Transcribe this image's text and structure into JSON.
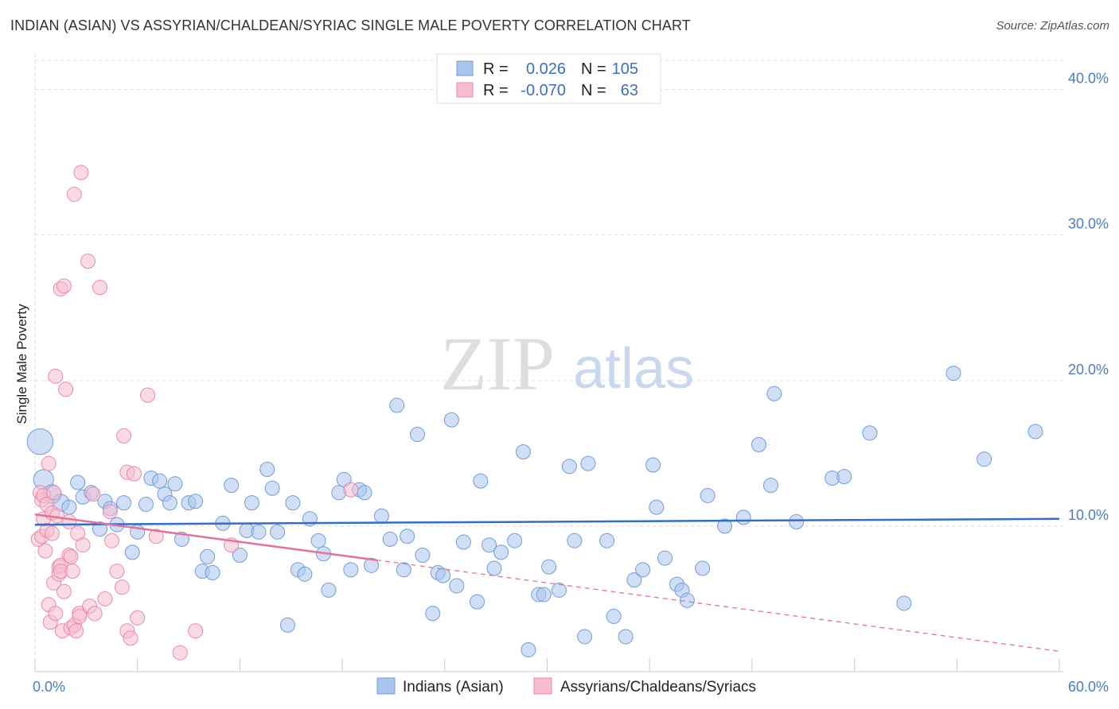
{
  "title": "INDIAN (ASIAN) VS ASSYRIAN/CHALDEAN/SYRIAC SINGLE MALE POVERTY CORRELATION CHART",
  "source": "Source: ZipAtlas.com",
  "watermark": {
    "zip": "ZIP",
    "atlas": "atlas"
  },
  "colors": {
    "blue_fill": "#a9c5ee",
    "blue_stroke": "#6f9ddb",
    "blue_line": "#2f6fc9",
    "pink_fill": "#f6bed0",
    "pink_stroke": "#e88aaa",
    "pink_line": "#e4709a",
    "grid": "#dddddd",
    "tick_text": "#4a7cc7"
  },
  "legend": {
    "r_label": "R =",
    "n_label": "N =",
    "series1": {
      "r": "0.026",
      "n": "105"
    },
    "series2": {
      "r": "-0.070",
      "n": "63"
    }
  },
  "chart_data": {
    "type": "scatter",
    "ylabel": "Single Male Poverty",
    "xlabel": "",
    "xlim": [
      0,
      60
    ],
    "ylim": [
      0,
      42
    ],
    "x_ticks": [
      0,
      6,
      12,
      18,
      24,
      30,
      36,
      42,
      48,
      54,
      60
    ],
    "x_tick_labels": [
      {
        "value": 0,
        "label": "0.0%"
      },
      {
        "value": 60,
        "label": "60.0%"
      }
    ],
    "y_tick_labels": [
      {
        "value": 10,
        "label": "10.0%"
      },
      {
        "value": 20,
        "label": "20.0%"
      },
      {
        "value": 30,
        "label": "30.0%"
      },
      {
        "value": 40,
        "label": "40.0%"
      }
    ],
    "legend_position": "bottom",
    "series": [
      {
        "name": "Indians (Asian)",
        "trend": {
          "x": [
            0,
            60
          ],
          "y": [
            10.1,
            10.5
          ],
          "dashed_from": null
        },
        "points": [
          [
            0.3,
            15.8,
            18
          ],
          [
            0.5,
            13.2,
            14
          ],
          [
            1,
            12.2,
            13
          ],
          [
            1.5,
            11.6,
            12
          ],
          [
            2,
            11.3,
            10
          ],
          [
            2.5,
            13,
            10
          ],
          [
            2.8,
            12,
            10
          ],
          [
            3.3,
            12.3,
            10
          ],
          [
            3.8,
            9.8,
            10
          ],
          [
            4.1,
            11.7,
            10
          ],
          [
            4.4,
            11.2,
            10
          ],
          [
            4.8,
            10.1,
            10
          ],
          [
            5.2,
            11.6,
            10
          ],
          [
            5.7,
            8.2,
            10
          ],
          [
            6,
            9.6,
            10
          ],
          [
            6.5,
            11.5,
            10
          ],
          [
            6.8,
            13.3,
            10
          ],
          [
            7.3,
            13.1,
            10
          ],
          [
            7.6,
            12.2,
            10
          ],
          [
            7.9,
            11.6,
            10
          ],
          [
            8.2,
            12.9,
            10
          ],
          [
            8.6,
            9.1,
            10
          ],
          [
            9,
            11.6,
            10
          ],
          [
            9.4,
            11.7,
            10
          ],
          [
            9.8,
            6.9,
            10
          ],
          [
            10.1,
            7.9,
            10
          ],
          [
            10.4,
            6.8,
            10
          ],
          [
            11,
            10.2,
            10
          ],
          [
            11.5,
            12.8,
            10
          ],
          [
            12,
            8,
            10
          ],
          [
            12.4,
            9.7,
            10
          ],
          [
            12.7,
            11.6,
            10
          ],
          [
            13.1,
            9.6,
            10
          ],
          [
            13.6,
            13.9,
            10
          ],
          [
            13.9,
            12.6,
            10
          ],
          [
            14.2,
            9.6,
            10
          ],
          [
            14.8,
            3.2,
            10
          ],
          [
            15.1,
            11.6,
            10
          ],
          [
            15.4,
            7,
            10
          ],
          [
            15.8,
            6.7,
            10
          ],
          [
            16.1,
            10.5,
            10
          ],
          [
            16.6,
            9,
            10
          ],
          [
            16.9,
            8.1,
            10
          ],
          [
            17.2,
            5.6,
            10
          ],
          [
            17.8,
            12.3,
            10
          ],
          [
            18.1,
            13.2,
            10
          ],
          [
            18.5,
            7,
            10
          ],
          [
            19,
            12.5,
            10
          ],
          [
            19.3,
            12.3,
            10
          ],
          [
            19.7,
            7.3,
            10
          ],
          [
            20.3,
            10.7,
            10
          ],
          [
            20.8,
            9.1,
            10
          ],
          [
            21.2,
            18.3,
            10
          ],
          [
            21.6,
            7,
            10
          ],
          [
            21.8,
            9.3,
            10
          ],
          [
            22.4,
            16.3,
            10
          ],
          [
            22.7,
            8,
            10
          ],
          [
            23.3,
            4,
            10
          ],
          [
            23.6,
            6.8,
            10
          ],
          [
            23.9,
            6.6,
            10
          ],
          [
            24.4,
            17.3,
            10
          ],
          [
            24.7,
            5.9,
            10
          ],
          [
            25.1,
            8.9,
            10
          ],
          [
            25.9,
            4.8,
            10
          ],
          [
            26.1,
            13.1,
            10
          ],
          [
            26.6,
            8.7,
            10
          ],
          [
            26.9,
            7.1,
            10
          ],
          [
            27.3,
            8.2,
            10
          ],
          [
            28.1,
            9,
            10
          ],
          [
            28.6,
            15.1,
            10
          ],
          [
            28.9,
            1.5,
            10
          ],
          [
            29.5,
            5.3,
            10
          ],
          [
            29.8,
            5.3,
            10
          ],
          [
            30.1,
            7.2,
            10
          ],
          [
            30.7,
            5.6,
            10
          ],
          [
            31.3,
            14.1,
            10
          ],
          [
            31.6,
            9,
            10
          ],
          [
            32.2,
            2.4,
            10
          ],
          [
            32.4,
            14.3,
            10
          ],
          [
            33.5,
            9,
            10
          ],
          [
            33.9,
            3.8,
            10
          ],
          [
            34.6,
            2.4,
            10
          ],
          [
            35.1,
            6.3,
            10
          ],
          [
            35.6,
            7,
            10
          ],
          [
            36.2,
            14.2,
            10
          ],
          [
            36.4,
            11.3,
            10
          ],
          [
            36.9,
            7.8,
            10
          ],
          [
            37.6,
            6,
            10
          ],
          [
            37.9,
            5.6,
            10
          ],
          [
            38.2,
            4.9,
            10
          ],
          [
            39.1,
            7.1,
            10
          ],
          [
            39.4,
            12.1,
            10
          ],
          [
            40.4,
            10,
            10
          ],
          [
            41.5,
            10.6,
            10
          ],
          [
            42.4,
            15.6,
            10
          ],
          [
            43.3,
            19.1,
            10
          ],
          [
            43.1,
            12.8,
            10
          ],
          [
            44.6,
            10.3,
            10
          ],
          [
            46.7,
            13.3,
            10
          ],
          [
            47.4,
            13.4,
            10
          ],
          [
            48.9,
            16.4,
            10
          ],
          [
            50.9,
            4.7,
            10
          ],
          [
            53.8,
            20.5,
            10
          ],
          [
            55.6,
            14.6,
            10
          ],
          [
            58.6,
            16.5,
            10
          ]
        ]
      },
      {
        "name": "Assyrians/Chaldeans/Syriacs",
        "trend": {
          "x": [
            0,
            60
          ],
          "y": [
            10.8,
            1.4
          ],
          "dashed_from": 20
        },
        "points": [
          [
            0.2,
            9.1,
            10
          ],
          [
            0.3,
            12.3,
            10
          ],
          [
            0.4,
            11.8,
            10
          ],
          [
            0.4,
            9.3,
            10
          ],
          [
            0.5,
            10.5,
            10
          ],
          [
            0.5,
            12.1,
            10
          ],
          [
            0.6,
            8.3,
            10
          ],
          [
            0.7,
            11.5,
            10
          ],
          [
            0.7,
            9.7,
            10
          ],
          [
            0.8,
            4.6,
            10
          ],
          [
            0.8,
            14.3,
            10
          ],
          [
            0.9,
            3.4,
            10
          ],
          [
            1,
            9.5,
            10
          ],
          [
            1,
            10.9,
            10
          ],
          [
            1.1,
            6.1,
            10
          ],
          [
            1.1,
            12.3,
            10
          ],
          [
            1.2,
            4,
            10
          ],
          [
            1.3,
            10.7,
            10
          ],
          [
            1.2,
            20.3,
            10
          ],
          [
            1.4,
            7.2,
            10
          ],
          [
            1.4,
            6.7,
            10
          ],
          [
            1.5,
            7.3,
            10
          ],
          [
            1.5,
            6.9,
            10
          ],
          [
            1.6,
            2.8,
            10
          ],
          [
            1.5,
            26.3,
            10
          ],
          [
            1.7,
            5.5,
            10
          ],
          [
            1.7,
            26.5,
            10
          ],
          [
            1.8,
            19.4,
            10
          ],
          [
            2,
            10.3,
            10
          ],
          [
            2,
            8,
            10
          ],
          [
            2.1,
            7.9,
            10
          ],
          [
            2.1,
            3,
            10
          ],
          [
            2.2,
            6.9,
            10
          ],
          [
            2.3,
            3.2,
            10
          ],
          [
            2.3,
            32.8,
            10
          ],
          [
            2.4,
            2.8,
            10
          ],
          [
            2.5,
            9.5,
            10
          ],
          [
            2.6,
            4,
            10
          ],
          [
            2.6,
            3.8,
            10
          ],
          [
            2.7,
            34.3,
            10
          ],
          [
            2.8,
            8.7,
            10
          ],
          [
            3.1,
            28.2,
            10
          ],
          [
            3.2,
            4.5,
            10
          ],
          [
            3.4,
            12.2,
            10
          ],
          [
            3.5,
            4,
            10
          ],
          [
            3.8,
            26.4,
            10
          ],
          [
            4.1,
            5,
            10
          ],
          [
            4.4,
            11,
            10
          ],
          [
            4.5,
            9,
            10
          ],
          [
            4.8,
            6.9,
            10
          ],
          [
            5.1,
            5.8,
            10
          ],
          [
            5.2,
            16.2,
            10
          ],
          [
            5.4,
            2.8,
            10
          ],
          [
            5.4,
            13.7,
            10
          ],
          [
            5.6,
            2.3,
            10
          ],
          [
            5.8,
            13.6,
            10
          ],
          [
            6,
            3.7,
            10
          ],
          [
            6.6,
            19,
            10
          ],
          [
            7.1,
            9.3,
            10
          ],
          [
            8.5,
            1.3,
            10
          ],
          [
            9.4,
            2.8,
            10
          ],
          [
            11.5,
            8.7,
            10
          ],
          [
            18.5,
            12.5,
            10
          ]
        ]
      }
    ]
  }
}
